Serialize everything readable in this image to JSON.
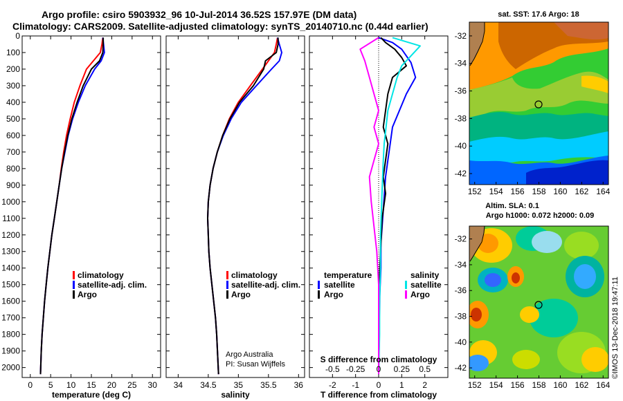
{
  "header": {
    "title_line1": "Argo profile: csiro 5903932_96 10-Jul-2014 36.52S 157.97E (DM data)",
    "title_line2": "Climatology: CARS2009. Satellite-adjusted climatology: synTS_20140710.nc (0.44d earlier)"
  },
  "credit": {
    "org": "Argo Australia",
    "pi": "PI: Susan Wijffels",
    "stamp": "©IMOS 13-Dec-2018 19:47:11"
  },
  "colors": {
    "climatology": "#ff0000",
    "satellite": "#0000ff",
    "argo": "#000000",
    "sat_salinity": "#00e5e5",
    "argo_salinity": "#ff00ff"
  },
  "chart_data": [
    {
      "type": "line",
      "name": "temperature",
      "xlabel": "temperature (deg C)",
      "ylabel": "",
      "xlim": [
        -2,
        32
      ],
      "ylim": [
        2060,
        0
      ],
      "xticks": [
        0,
        5,
        10,
        15,
        20,
        25,
        30
      ],
      "yticks": [
        0,
        100,
        200,
        300,
        400,
        500,
        600,
        700,
        800,
        900,
        1000,
        1100,
        1200,
        1300,
        1400,
        1500,
        1600,
        1700,
        1800,
        1900,
        2000
      ],
      "legend": [
        "climatology",
        "satellite-adj. clim.",
        "Argo"
      ],
      "legend_position": "lower-right",
      "series": [
        {
          "name": "climatology",
          "x": [
            17.8,
            17.6,
            17.2,
            15.5,
            13.8,
            12.2,
            10.8,
            9.8,
            8.9,
            8.2,
            7.6,
            7.1,
            6.5,
            5.9,
            5.3,
            4.8,
            4.3,
            3.9,
            3.5,
            3.2,
            2.9,
            2.7,
            2.5
          ],
          "y": [
            10,
            50,
            100,
            150,
            200,
            300,
            400,
            500,
            600,
            700,
            800,
            900,
            1000,
            1100,
            1200,
            1300,
            1400,
            1500,
            1600,
            1700,
            1800,
            1900,
            2040
          ]
        },
        {
          "name": "satellite-adj. clim.",
          "x": [
            17.8,
            18.0,
            18.2,
            17.4,
            15.8,
            13.5,
            11.8,
            10.4,
            9.3,
            8.5,
            7.7,
            7.1,
            6.5,
            5.9,
            5.3,
            4.8,
            4.3,
            3.9,
            3.5,
            3.2,
            2.9,
            2.7,
            2.5
          ],
          "y": [
            10,
            50,
            100,
            150,
            200,
            300,
            400,
            500,
            600,
            700,
            800,
            900,
            1000,
            1100,
            1200,
            1300,
            1400,
            1500,
            1600,
            1700,
            1800,
            1900,
            2040
          ]
        },
        {
          "name": "Argo",
          "x": [
            17.9,
            17.9,
            17.8,
            17.0,
            15.0,
            13.0,
            11.5,
            10.2,
            9.2,
            8.4,
            7.7,
            7.1,
            6.5,
            5.9,
            5.3,
            4.8,
            4.3,
            3.9,
            3.5,
            3.2,
            2.9,
            2.7,
            2.5
          ],
          "y": [
            10,
            50,
            100,
            150,
            200,
            300,
            400,
            500,
            600,
            700,
            800,
            900,
            1000,
            1100,
            1200,
            1300,
            1400,
            1500,
            1600,
            1700,
            1800,
            1900,
            2040
          ]
        }
      ]
    },
    {
      "type": "line",
      "name": "salinity",
      "xlabel": "salinity",
      "xlim": [
        33.8,
        36.1
      ],
      "ylim": [
        2060,
        0
      ],
      "xticks": [
        34,
        34.5,
        35,
        35.5,
        36
      ],
      "legend": [
        "climatology",
        "satellite-adj. clim.",
        "Argo"
      ],
      "legend_position": "lower-right",
      "series": [
        {
          "name": "climatology",
          "x": [
            35.65,
            35.63,
            35.6,
            35.5,
            35.4,
            35.2,
            35.0,
            34.85,
            34.74,
            34.65,
            34.58,
            34.53,
            34.5,
            34.49,
            34.5,
            34.51,
            34.53,
            34.56,
            34.59,
            34.62,
            34.64,
            34.67
          ],
          "y": [
            10,
            50,
            100,
            150,
            200,
            300,
            400,
            500,
            600,
            700,
            800,
            900,
            1000,
            1100,
            1200,
            1300,
            1400,
            1500,
            1600,
            1700,
            1800,
            2040
          ]
        },
        {
          "name": "satellite-adj. clim.",
          "x": [
            35.65,
            35.68,
            35.72,
            35.68,
            35.55,
            35.3,
            35.05,
            34.88,
            34.75,
            34.65,
            34.58,
            34.53,
            34.5,
            34.49,
            34.5,
            34.51,
            34.53,
            34.56,
            34.59,
            34.62,
            34.64,
            34.67
          ],
          "y": [
            10,
            50,
            100,
            150,
            200,
            300,
            400,
            500,
            600,
            700,
            800,
            900,
            1000,
            1100,
            1200,
            1300,
            1400,
            1500,
            1600,
            1700,
            1800,
            2040
          ]
        },
        {
          "name": "Argo",
          "x": [
            35.66,
            35.66,
            35.63,
            35.45,
            35.42,
            35.25,
            35.02,
            34.86,
            34.74,
            34.65,
            34.58,
            34.53,
            34.5,
            34.49,
            34.5,
            34.51,
            34.53,
            34.56,
            34.59,
            34.62,
            34.64,
            34.67
          ],
          "y": [
            10,
            50,
            100,
            150,
            200,
            300,
            400,
            500,
            600,
            700,
            800,
            900,
            1000,
            1100,
            1200,
            1300,
            1400,
            1500,
            1600,
            1700,
            1800,
            2040
          ]
        }
      ]
    },
    {
      "type": "line",
      "name": "difference from climatology",
      "xlabel": "T difference from climatology",
      "xlabel_top": "S difference from climatology",
      "xlim": [
        -3,
        3
      ],
      "ylim": [
        2060,
        0
      ],
      "xticks": [
        -2,
        -1,
        0,
        1,
        2
      ],
      "xticks_top": [
        "-0.5",
        "-0.25",
        "0",
        "0.25",
        "0.5"
      ],
      "legend_left_title": "temperature",
      "legend_right_title": "salinity",
      "legend_left": [
        "satellite",
        "Argo"
      ],
      "legend_right": [
        "satellite",
        "Argo"
      ],
      "series": [
        {
          "name": "T satellite",
          "x": [
            0.0,
            0.6,
            1.0,
            1.2,
            1.4,
            1.6,
            1.2,
            0.9,
            0.6,
            0.5,
            0.4,
            0.3,
            0.25,
            0.2,
            0.15,
            0.1,
            0.1,
            0.05,
            0.03,
            0.02,
            0.0
          ],
          "y": [
            10,
            40,
            80,
            120,
            160,
            250,
            350,
            450,
            550,
            650,
            750,
            850,
            950,
            1050,
            1150,
            1250,
            1400,
            1550,
            1700,
            1850,
            2040
          ]
        },
        {
          "name": "T Argo",
          "x": [
            0.1,
            0.3,
            0.7,
            1.0,
            1.2,
            0.6,
            0.4,
            0.3,
            0.2,
            0.4,
            0.3,
            0.2,
            0.3,
            0.15,
            0.1,
            0.05,
            0.0,
            0.0,
            0.0,
            0.0
          ],
          "y": [
            10,
            40,
            80,
            130,
            180,
            250,
            350,
            450,
            550,
            650,
            750,
            850,
            950,
            1100,
            1250,
            1400,
            1550,
            1700,
            1850,
            2040
          ]
        },
        {
          "name": "S satellite",
          "x": [
            0.15,
            0.45,
            0.35,
            0.25,
            0.2,
            0.15,
            0.1,
            0.08,
            0.06,
            0.05,
            0.04,
            0.03,
            0.02,
            0.02,
            0.01,
            0.01,
            0.0
          ],
          "y": [
            10,
            60,
            120,
            180,
            250,
            350,
            450,
            550,
            650,
            750,
            900,
            1050,
            1200,
            1400,
            1600,
            1800,
            2040
          ]
        },
        {
          "name": "S Argo",
          "x": [
            0.0,
            -0.2,
            -0.15,
            -0.1,
            -0.05,
            0.0,
            -0.05,
            0.0,
            -0.05,
            -0.1,
            -0.08,
            -0.05,
            -0.02,
            0.0,
            0.0,
            0.0
          ],
          "y": [
            10,
            80,
            150,
            250,
            350,
            450,
            550,
            650,
            750,
            850,
            1000,
            1150,
            1300,
            1500,
            1700,
            2040
          ]
        }
      ]
    }
  ],
  "maps": {
    "sst": {
      "title": "sat. SST: 17.6 Argo: 18",
      "lat_ticks": [
        "-32",
        "-34",
        "-36",
        "-38",
        "-40",
        "-42"
      ],
      "lon_ticks": [
        "152",
        "154",
        "156",
        "158",
        "160",
        "162",
        "164"
      ],
      "float_lon": 157.97,
      "float_lat": -36.52
    },
    "sla": {
      "title_line1": "Altim. SLA: 0.1",
      "title_line2": "Argo h1000: 0.072 h2000: 0.09",
      "lat_ticks": [
        "-32",
        "-34",
        "-36",
        "-38",
        "-40",
        "-42"
      ],
      "lon_ticks": [
        "152",
        "154",
        "156",
        "158",
        "160",
        "162",
        "164"
      ],
      "float_lon": 157.97,
      "float_lat": -36.52
    }
  }
}
